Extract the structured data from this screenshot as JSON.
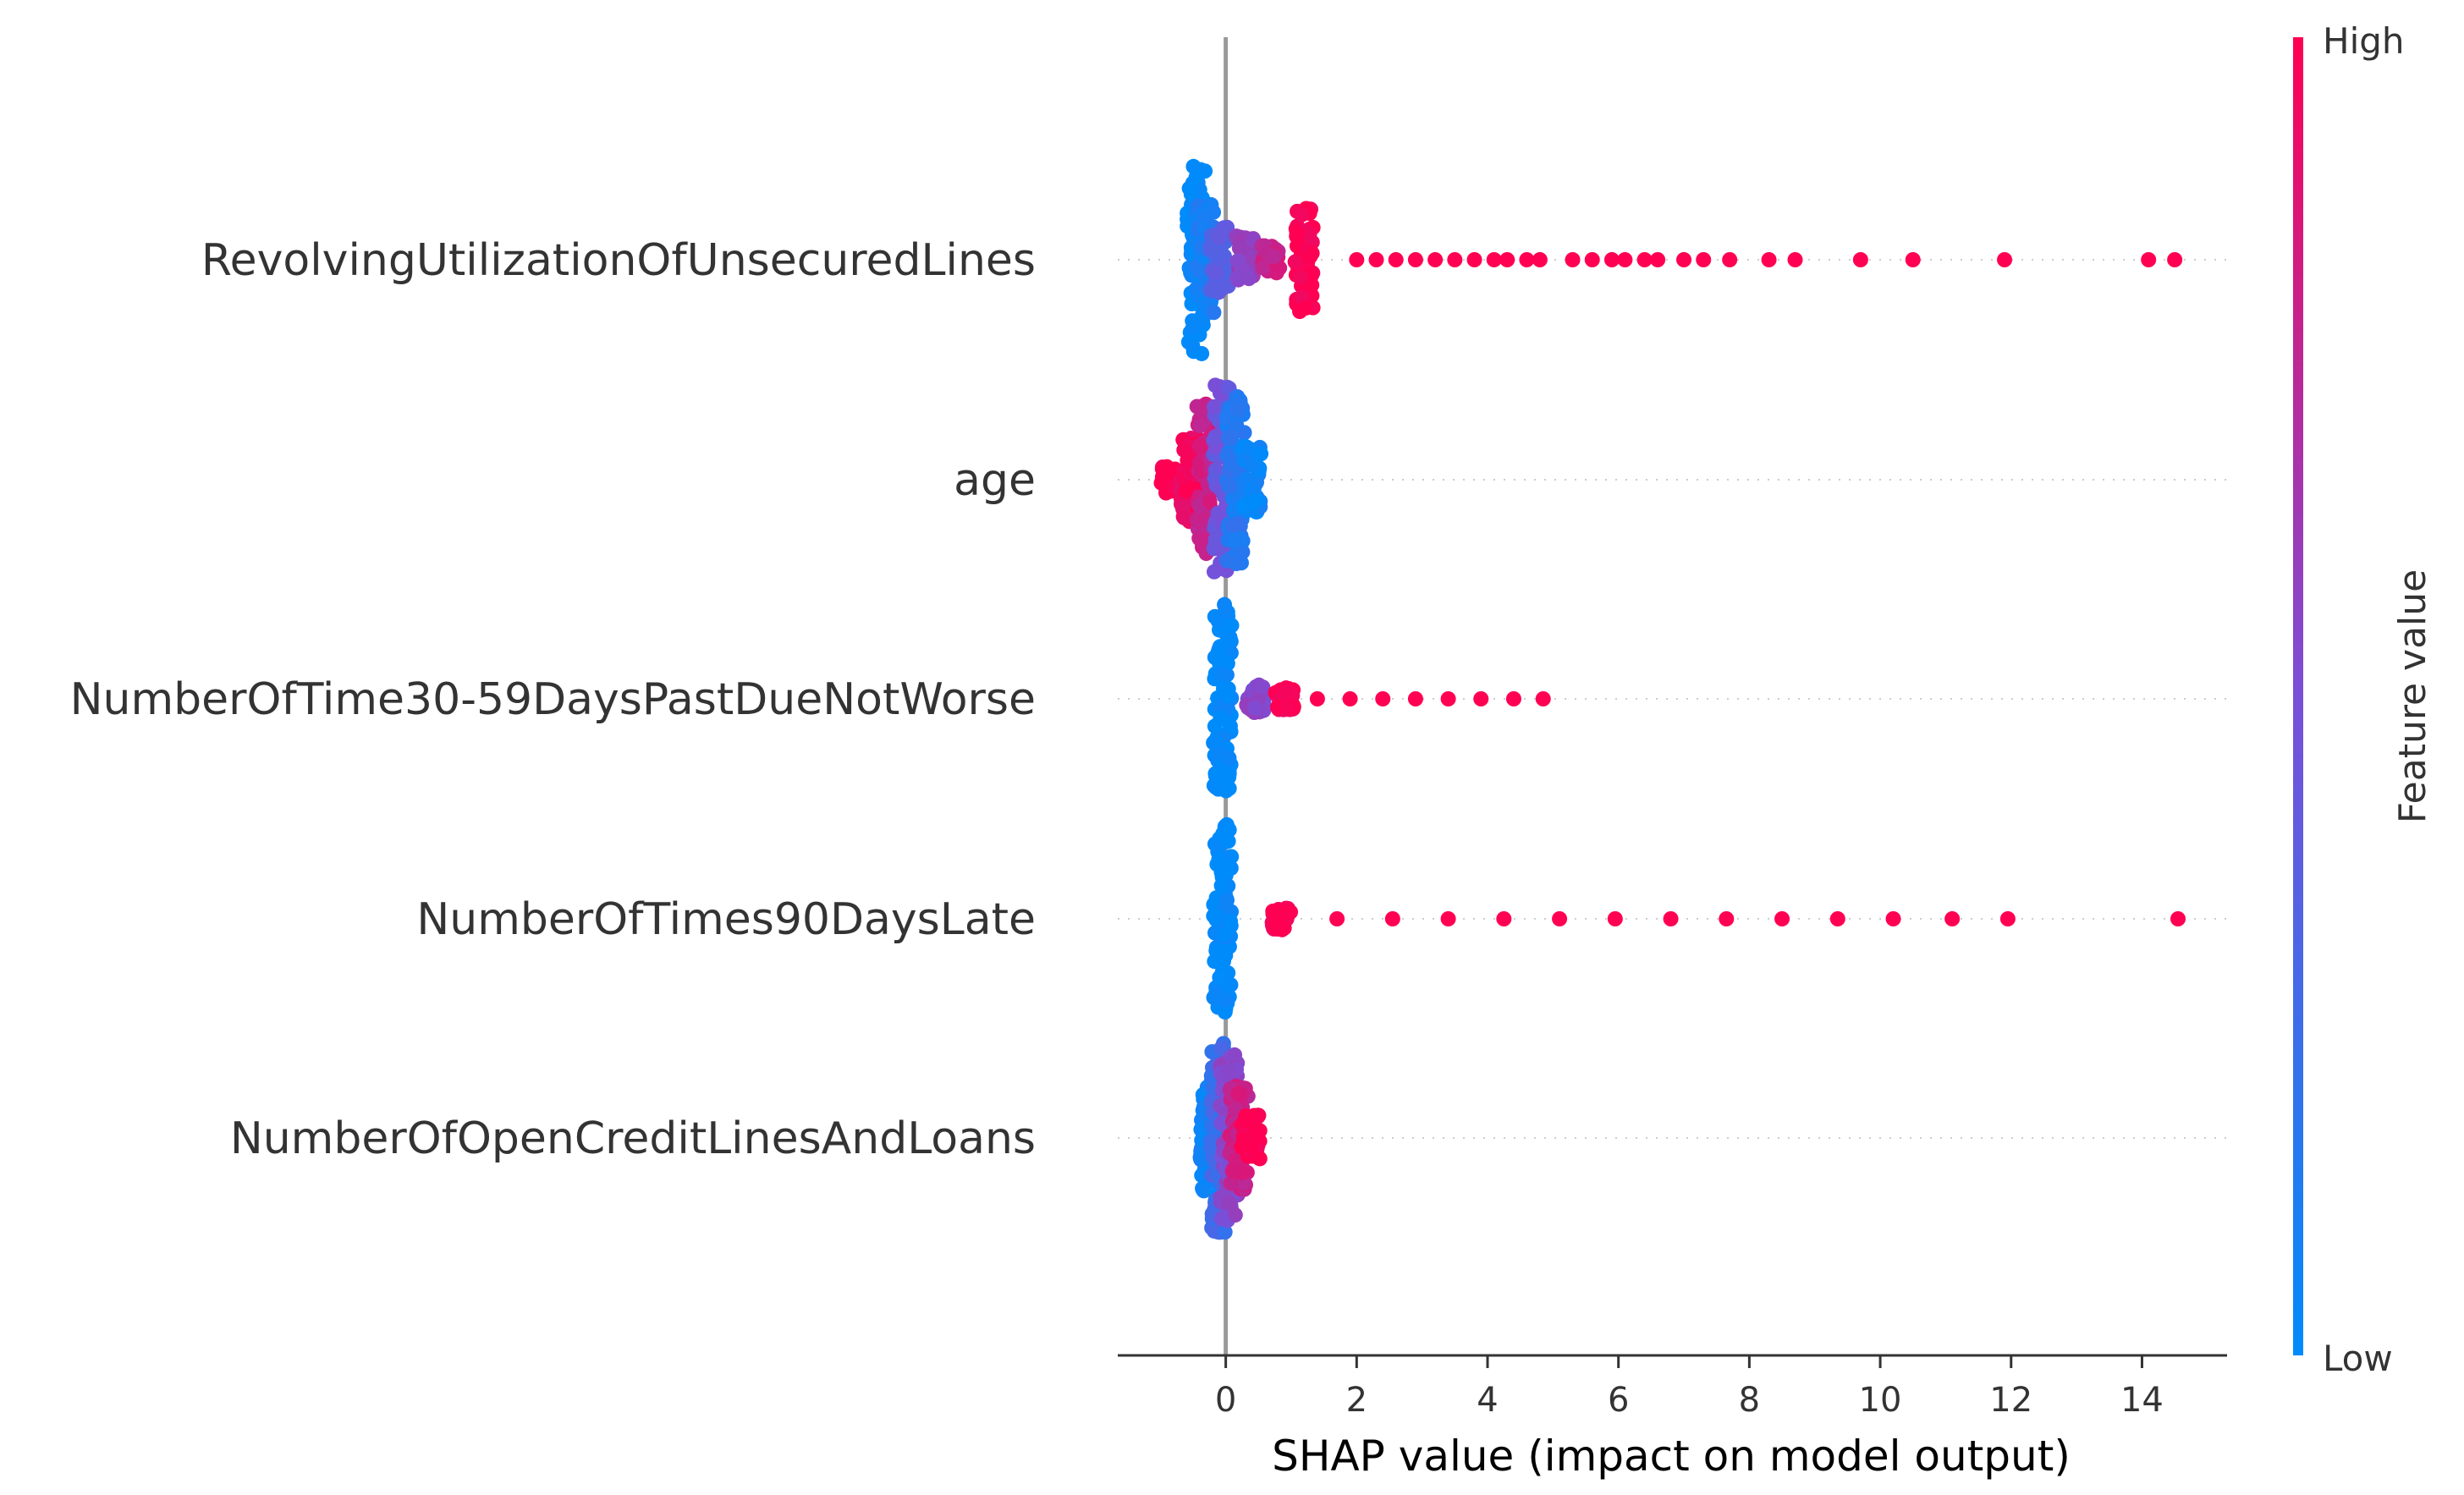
{
  "chart_data": {
    "type": "scatter",
    "subtype": "shap-beeswarm",
    "xlabel": "SHAP value (impact on model output)",
    "xlim": [
      -1.65,
      15.3
    ],
    "xticks": [
      0,
      2,
      4,
      6,
      8,
      10,
      12,
      14
    ],
    "grid": false,
    "colorbar": {
      "title": "Feature value",
      "high_label": "High",
      "low_label": "Low",
      "high_color": "#ff0052",
      "mid_color": "#7a4fd8",
      "low_color": "#008bfb"
    },
    "features": [
      {
        "name": "RevolvingUtilizationOfUnsecuredLines",
        "clusters": [
          {
            "x": -0.45,
            "color": 0.0,
            "spread": 1.0
          },
          {
            "x": -0.3,
            "color": 0.1,
            "spread": 0.6
          },
          {
            "x": -0.1,
            "color": 0.35,
            "spread": 0.35
          },
          {
            "x": 0.3,
            "color": 0.6,
            "spread": 0.25
          },
          {
            "x": 0.7,
            "color": 0.8,
            "spread": 0.15
          },
          {
            "x": 1.2,
            "color": 1.0,
            "spread": 0.55
          }
        ],
        "points": [
          2.0,
          2.3,
          2.6,
          2.9,
          3.2,
          3.5,
          3.8,
          4.1,
          4.3,
          4.6,
          4.8,
          5.3,
          5.6,
          5.9,
          6.1,
          6.4,
          6.6,
          7.0,
          7.3,
          7.7,
          8.3,
          8.7,
          9.7,
          10.5,
          11.9,
          14.1,
          14.5
        ],
        "point_color": 1.0
      },
      {
        "name": "age",
        "clusters": [
          {
            "x": -0.85,
            "color": 1.0,
            "spread": 0.15
          },
          {
            "x": -0.55,
            "color": 0.95,
            "spread": 0.45
          },
          {
            "x": -0.3,
            "color": 0.8,
            "spread": 0.8
          },
          {
            "x": -0.05,
            "color": 0.45,
            "spread": 1.0
          },
          {
            "x": 0.15,
            "color": 0.15,
            "spread": 0.9
          },
          {
            "x": 0.4,
            "color": 0.05,
            "spread": 0.35
          }
        ],
        "points": [],
        "point_color": 1.0
      },
      {
        "name": "NumberOfTime30-59DaysPastDueNotWorse",
        "clusters": [
          {
            "x": -0.05,
            "color": 0.0,
            "spread": 1.0
          },
          {
            "x": 0.45,
            "color": 0.55,
            "spread": 0.15
          },
          {
            "x": 0.9,
            "color": 1.0,
            "spread": 0.12
          }
        ],
        "points": [
          1.4,
          1.9,
          2.4,
          2.9,
          3.4,
          3.9,
          4.4,
          4.85
        ],
        "point_color": 1.0
      },
      {
        "name": "NumberOfTimes90DaysLate",
        "clusters": [
          {
            "x": -0.05,
            "color": 0.0,
            "spread": 1.0
          },
          {
            "x": 0.85,
            "color": 1.0,
            "spread": 0.12
          }
        ],
        "points": [
          1.7,
          2.55,
          3.4,
          4.25,
          5.1,
          5.95,
          6.8,
          7.65,
          8.5,
          9.35,
          10.2,
          11.1,
          11.95,
          14.55
        ],
        "point_color": 1.0
      },
      {
        "name": "NumberOfOpenCreditLinesAndLoans",
        "clusters": [
          {
            "x": -0.25,
            "color": 0.05,
            "spread": 0.6
          },
          {
            "x": -0.1,
            "color": 0.25,
            "spread": 1.0
          },
          {
            "x": 0.05,
            "color": 0.55,
            "spread": 0.9
          },
          {
            "x": 0.2,
            "color": 0.8,
            "spread": 0.55
          },
          {
            "x": 0.38,
            "color": 1.0,
            "spread": 0.25
          }
        ],
        "points": [],
        "point_color": 1.0
      }
    ]
  }
}
